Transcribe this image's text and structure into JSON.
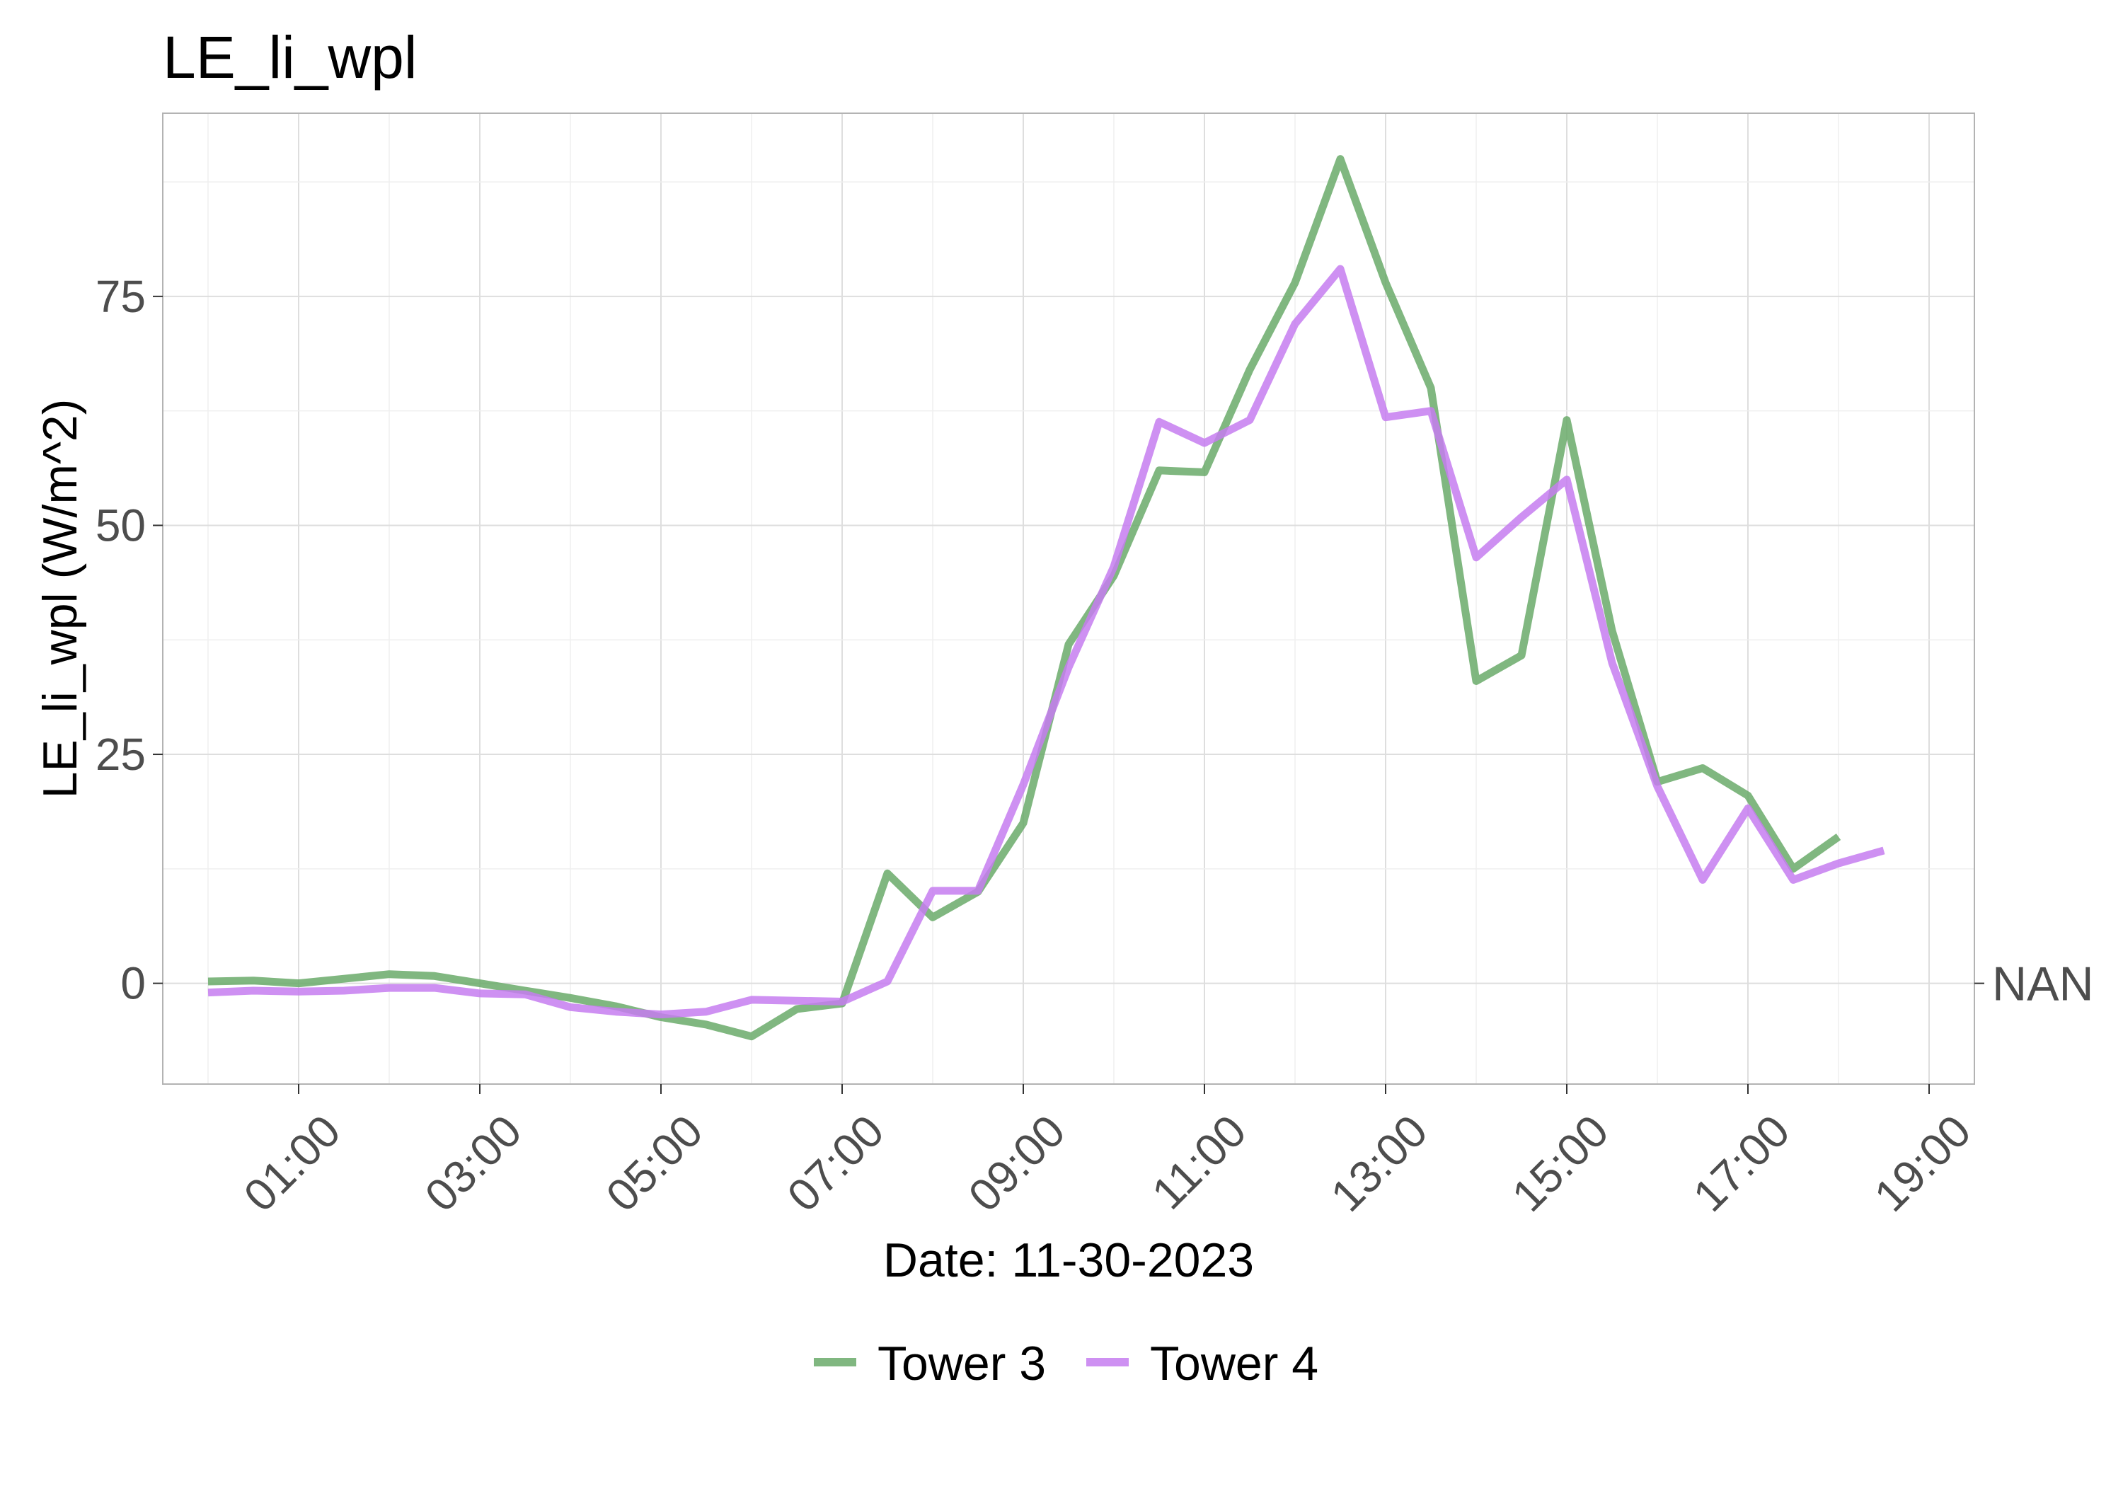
{
  "chart_data": {
    "type": "line",
    "title": "LE_li_wpl",
    "xlabel": "Date: 11-30-2023",
    "ylabel": "LE_li_wpl (W/m^2)",
    "x_tick_labels": [
      "01:00",
      "03:00",
      "05:00",
      "07:00",
      "09:00",
      "11:00",
      "13:00",
      "15:00",
      "17:00",
      "19:00"
    ],
    "y_tick_labels": [
      "0",
      "25",
      "50",
      "75"
    ],
    "y_secondary_label": "NAN",
    "xlim": [
      "00:00",
      "19:30"
    ],
    "ylim": [
      -11,
      95
    ],
    "grid": true,
    "legend_position": "bottom",
    "x": [
      "00:00",
      "00:30",
      "01:00",
      "01:30",
      "02:00",
      "02:30",
      "03:00",
      "03:30",
      "04:00",
      "04:30",
      "05:00",
      "05:30",
      "06:00",
      "06:30",
      "07:00",
      "07:30",
      "08:00",
      "08:30",
      "09:00",
      "09:30",
      "10:00",
      "10:30",
      "11:00",
      "11:30",
      "12:00",
      "12:30",
      "13:00",
      "13:30",
      "14:00",
      "14:30",
      "15:00",
      "15:30",
      "16:00",
      "16:30",
      "17:00",
      "17:30",
      "18:00",
      "18:30"
    ],
    "series": [
      {
        "name": "Tower 3",
        "color": "#6aaa6a",
        "values": [
          0.2,
          0.3,
          0.0,
          0.5,
          1.0,
          0.8,
          0.0,
          -0.8,
          -1.6,
          -2.5,
          -3.7,
          -4.5,
          -5.8,
          -2.8,
          -2.2,
          12.0,
          7.2,
          10.0,
          17.5,
          37.0,
          44.5,
          56.0,
          55.8,
          67.0,
          76.5,
          90.0,
          76.5,
          65.0,
          33.0,
          35.8,
          61.5,
          38.5,
          22.0,
          23.5,
          20.5,
          12.5,
          16.0,
          null
        ],
        "line_width": 3
      },
      {
        "name": "Tower 4",
        "color": "#c57cf0",
        "values": [
          -1.0,
          -0.8,
          -0.9,
          -0.8,
          -0.5,
          -0.5,
          -1.1,
          -1.2,
          -2.6,
          -3.1,
          -3.4,
          -3.1,
          -1.8,
          -1.9,
          -2.0,
          0.2,
          10.1,
          10.1,
          21.7,
          34.5,
          45.5,
          61.3,
          59.0,
          61.5,
          72.0,
          78.0,
          61.8,
          62.5,
          46.5,
          50.9,
          55.0,
          35.0,
          21.5,
          11.3,
          19.1,
          11.3,
          13.1,
          14.5
        ],
        "line_width": 3
      }
    ]
  }
}
